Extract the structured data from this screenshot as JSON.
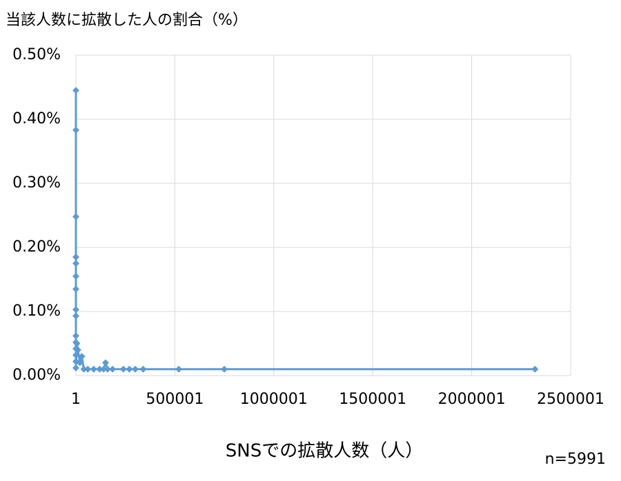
{
  "chart_data": {
    "type": "line",
    "title": "当該人数に拡散した人の割合（%）",
    "x_label": "SNSでの拡散人数（人）",
    "note": "n=5991",
    "x": [
      1,
      2,
      3,
      4,
      5,
      6,
      7,
      8,
      9,
      10,
      11,
      12,
      13,
      14,
      20,
      5000,
      10000,
      20000,
      30000,
      40000,
      60000,
      90000,
      120000,
      140000,
      150000,
      160000,
      185000,
      240000,
      270000,
      300000,
      340000,
      520000,
      750000,
      2320000
    ],
    "series": [
      {
        "color": "#5b9bd5",
        "values": [
          0.445,
          0.383,
          0.248,
          0.185,
          0.175,
          0.155,
          0.135,
          0.103,
          0.093,
          0.062,
          0.052,
          0.042,
          0.032,
          0.022,
          0.012,
          0.05,
          0.04,
          0.02,
          0.03,
          0.01,
          0.01,
          0.01,
          0.01,
          0.01,
          0.02,
          0.01,
          0.01,
          0.01,
          0.01,
          0.01,
          0.01,
          0.01,
          0.01,
          0.01
        ]
      }
    ],
    "xlim": [
      1,
      2500001
    ],
    "xticks": [
      1,
      500001,
      1000001,
      1500001,
      2000001,
      2500001
    ],
    "ylim": [
      0,
      0.5
    ],
    "yticks": [
      {
        "value": 0,
        "label": "0.00%"
      },
      {
        "value": 0.1,
        "label": "0.10%"
      },
      {
        "value": 0.2,
        "label": "0.20%"
      },
      {
        "value": 0.3,
        "label": "0.30%"
      },
      {
        "value": 0.4,
        "label": "0.40%"
      },
      {
        "value": 0.5,
        "label": "0.50%"
      }
    ],
    "grid": true
  }
}
